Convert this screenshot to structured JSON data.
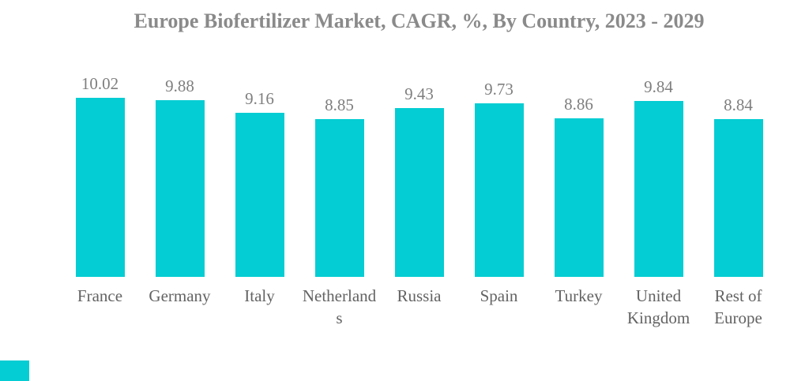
{
  "title": "Europe Biofertilizer Market, CAGR, %, By Country, 2023 - 2029",
  "chart_data": {
    "type": "bar",
    "title": "Europe Biofertilizer Market, CAGR, %, By Country, 2023 - 2029",
    "categories": [
      "France",
      "Germany",
      "Italy",
      "Netherlands",
      "Russia",
      "Spain",
      "Turkey",
      "United Kingdom",
      "Rest of Europe"
    ],
    "values": [
      10.02,
      9.88,
      9.16,
      8.85,
      9.43,
      9.73,
      8.86,
      9.84,
      8.84
    ],
    "xlabel": "",
    "ylabel": "",
    "ylim": [
      0,
      11
    ],
    "grid": false,
    "legend": false,
    "data_labels": true,
    "bar_color": "#04cdd3"
  },
  "colors": {
    "bar": "#04cdd3",
    "title_text": "#8a8a8a",
    "value_label_text": "#7f7f7f",
    "category_label_text": "#636363",
    "background": "#ffffff",
    "brand_mark": "#04cdd3"
  }
}
